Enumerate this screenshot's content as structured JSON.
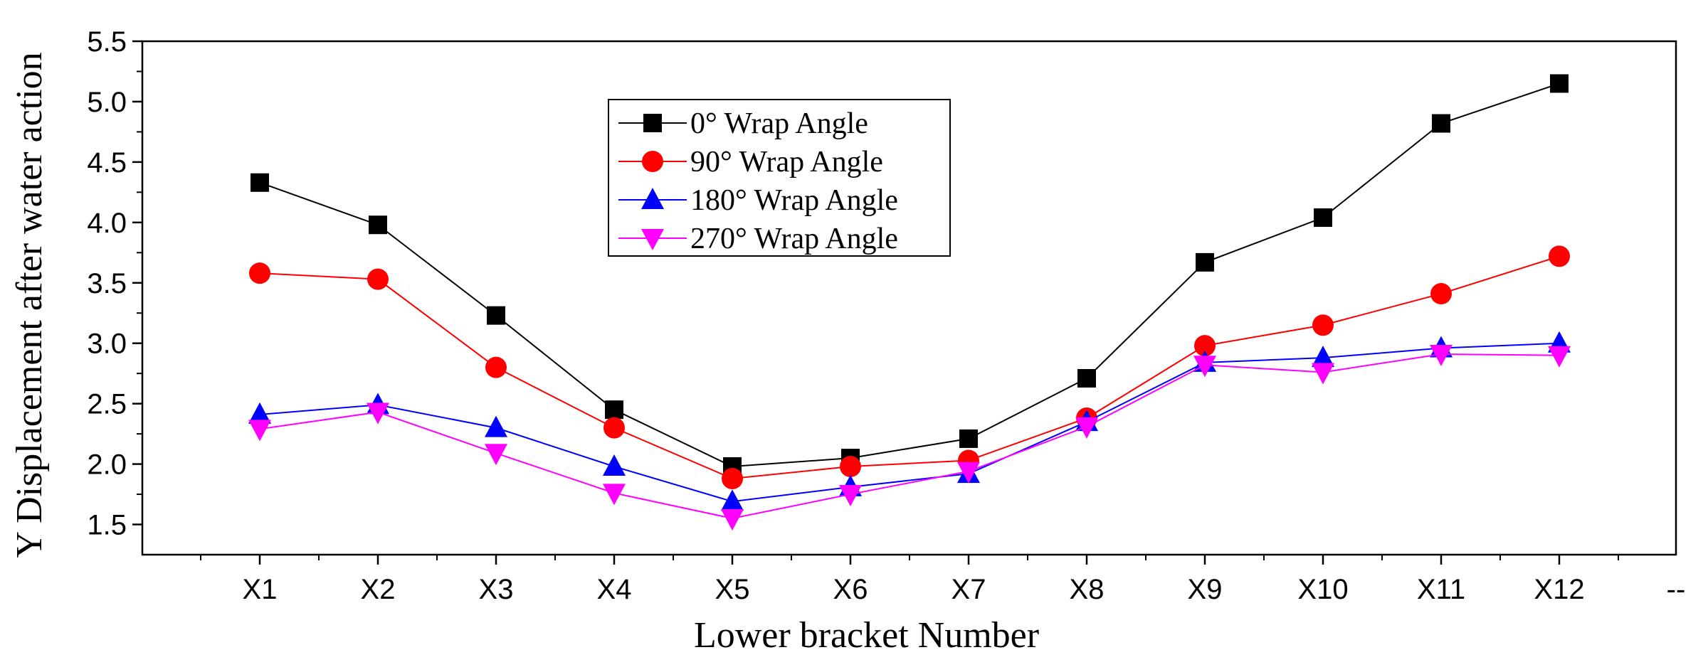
{
  "chart_data": {
    "type": "line",
    "title": "",
    "xlabel": "Lower bracket Number",
    "ylabel": "Y Displacement after water action",
    "categories": [
      "X1",
      "X2",
      "X3",
      "X4",
      "X5",
      "X6",
      "X7",
      "X8",
      "X9",
      "X10",
      "X11",
      "X12"
    ],
    "extra_tick_label": "--",
    "ylim": [
      1.25,
      5.5
    ],
    "yticks": [
      1.5,
      2.0,
      2.5,
      3.0,
      3.5,
      4.0,
      4.5,
      5.0,
      5.5
    ],
    "ytick_labels": [
      "1.5",
      "2.0",
      "2.5",
      "3.0",
      "3.5",
      "4.0",
      "4.5",
      "5.0",
      "5.5"
    ],
    "grid": false,
    "legend_position": "top-center",
    "series": [
      {
        "name": "0°   Wrap Angle",
        "marker": "square",
        "color": "#000000",
        "values": [
          4.33,
          3.98,
          3.23,
          2.45,
          1.98,
          2.05,
          2.21,
          2.71,
          3.67,
          4.04,
          4.82,
          5.15
        ]
      },
      {
        "name": "90°  Wrap Angle",
        "marker": "circle",
        "color": "#ff0000",
        "values": [
          3.58,
          3.53,
          2.8,
          2.3,
          1.88,
          1.98,
          2.03,
          2.38,
          2.98,
          3.15,
          3.41,
          3.72
        ]
      },
      {
        "name": "180° Wrap Angle",
        "marker": "triangle-up",
        "color": "#0000ff",
        "values": [
          2.41,
          2.49,
          2.3,
          1.98,
          1.69,
          1.81,
          1.92,
          2.35,
          2.84,
          2.88,
          2.96,
          3.0
        ]
      },
      {
        "name": "270° Wrap Angle",
        "marker": "triangle-down",
        "color": "#ff00ff",
        "values": [
          2.29,
          2.43,
          2.09,
          1.76,
          1.55,
          1.75,
          1.94,
          2.31,
          2.82,
          2.76,
          2.91,
          2.9
        ]
      }
    ]
  }
}
